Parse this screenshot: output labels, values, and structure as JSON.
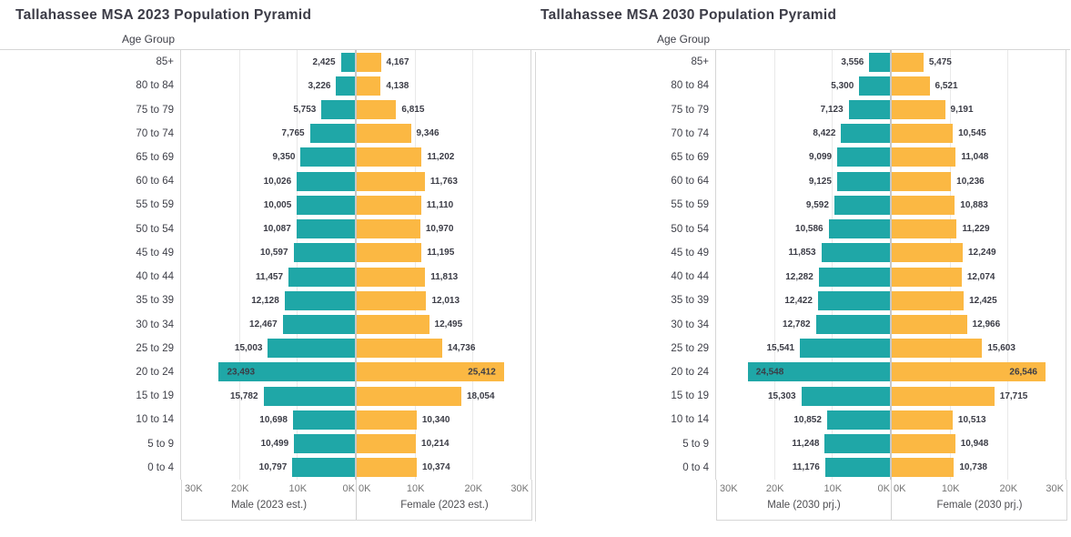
{
  "colors": {
    "male_bar": "#1fa7a7",
    "female_bar": "#fbb843",
    "value_label": "#3b3c46",
    "age_label": "#3f4049",
    "tick_label": "#757575",
    "axis_title": "#4e4e52",
    "chart_title": "#3b3b46",
    "grid_line": "#e9e9e9",
    "panel_border": "#d6d6d6",
    "zero_line": "#c8c8c8"
  },
  "chart_data": [
    {
      "type": "bar",
      "subtype": "population_pyramid",
      "title": "Tallahassee MSA 2023 Population Pyramid",
      "row_axis_title": "Age Group",
      "categories": [
        "85+",
        "80 to 84",
        "75 to 79",
        "70 to 74",
        "65 to 69",
        "60 to 64",
        "55 to 59",
        "50 to 54",
        "45 to 49",
        "40 to 44",
        "35 to 39",
        "30 to 34",
        "25 to 29",
        "20 to 24",
        "15 to 19",
        "10 to 14",
        "5 to 9",
        "0 to 4"
      ],
      "series": [
        {
          "name": "Male (2023 est.)",
          "side": "left",
          "values": [
            2425,
            3226,
            5753,
            7765,
            9350,
            10026,
            10005,
            10087,
            10597,
            11457,
            12128,
            12467,
            15003,
            23493,
            15782,
            10698,
            10499,
            10797
          ]
        },
        {
          "name": "Female (2023 est.)",
          "side": "right",
          "values": [
            4167,
            4138,
            6815,
            9346,
            11202,
            11763,
            11110,
            10970,
            11195,
            11813,
            12013,
            12495,
            14736,
            25412,
            18054,
            10340,
            10214,
            10374
          ]
        }
      ],
      "axis": {
        "max": 30000,
        "gridlines": [
          10000,
          20000
        ],
        "ticks": [
          {
            "label": "30K",
            "value": 30000
          },
          {
            "label": "20K",
            "value": 20000
          },
          {
            "label": "10K",
            "value": 10000
          },
          {
            "label": "0K",
            "value": 0
          }
        ]
      },
      "label_inside_min": 20000
    },
    {
      "type": "bar",
      "subtype": "population_pyramid",
      "title": "Tallahassee MSA 2030 Population Pyramid",
      "row_axis_title": "Age Group",
      "categories": [
        "85+",
        "80 to 84",
        "75 to 79",
        "70 to 74",
        "65 to 69",
        "60 to 64",
        "55 to 59",
        "50 to 54",
        "45 to 49",
        "40 to 44",
        "35 to 39",
        "30 to 34",
        "25 to 29",
        "20 to 24",
        "15 to 19",
        "10 to 14",
        "5 to 9",
        "0 to 4"
      ],
      "series": [
        {
          "name": "Male (2030 prj.)",
          "side": "left",
          "values": [
            3556,
            5300,
            7123,
            8422,
            9099,
            9125,
            9592,
            10586,
            11853,
            12282,
            12422,
            12782,
            15541,
            24548,
            15303,
            10852,
            11248,
            11176
          ]
        },
        {
          "name": "Female (2030 prj.)",
          "side": "right",
          "values": [
            5475,
            6521,
            9191,
            10545,
            11048,
            10236,
            10883,
            11229,
            12249,
            12074,
            12425,
            12966,
            15603,
            26546,
            17715,
            10513,
            10948,
            10738
          ]
        }
      ],
      "axis": {
        "max": 30000,
        "gridlines": [
          10000,
          20000
        ],
        "ticks": [
          {
            "label": "30K",
            "value": 30000
          },
          {
            "label": "20K",
            "value": 20000
          },
          {
            "label": "10K",
            "value": 10000
          },
          {
            "label": "0K",
            "value": 0
          }
        ]
      },
      "label_inside_min": 20000
    }
  ]
}
